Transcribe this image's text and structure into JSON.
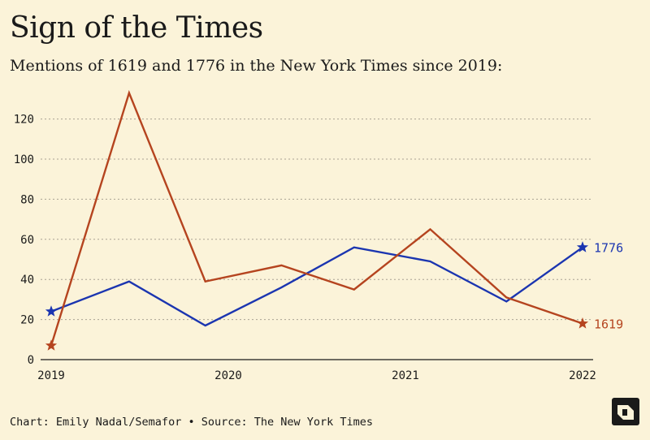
{
  "title": "Sign of the Times",
  "subtitle": "Mentions of 1619 and 1776 in the New York Times since 2019:",
  "footer": {
    "credit": "Chart: Emily Nadal/Semafor • Source: The New York Times"
  },
  "colors": {
    "background": "#FBF3D9",
    "series_1776": "#1B35B0",
    "series_1619": "#B5441F",
    "grid": "#A9A294",
    "text": "#1A1A1A"
  },
  "chart_data": {
    "type": "line",
    "title": "Sign of the Times",
    "subtitle": "Mentions of 1619 and 1776 in the New York Times since 2019:",
    "xlabel": "",
    "ylabel": "",
    "x_ticks": [
      "2019",
      "2020",
      "2021",
      "2022"
    ],
    "y_ticks": [
      0,
      20,
      40,
      60,
      80,
      100,
      120
    ],
    "xlim": [
      2019.0,
      2022.0
    ],
    "ylim": [
      0,
      135
    ],
    "grid": true,
    "legend": "direct-labels-right",
    "series": [
      {
        "name": "1776",
        "x": [
          2019.0,
          2019.44,
          2019.87,
          2020.3,
          2020.71,
          2021.14,
          2021.57,
          2022.0
        ],
        "values": [
          24,
          39,
          17,
          36,
          56,
          49,
          29,
          56
        ]
      },
      {
        "name": "1619",
        "x": [
          2019.0,
          2019.44,
          2019.87,
          2020.3,
          2020.71,
          2021.14,
          2021.57,
          2022.0
        ],
        "values": [
          7,
          133,
          39,
          47,
          35,
          65,
          31,
          18
        ]
      }
    ]
  }
}
